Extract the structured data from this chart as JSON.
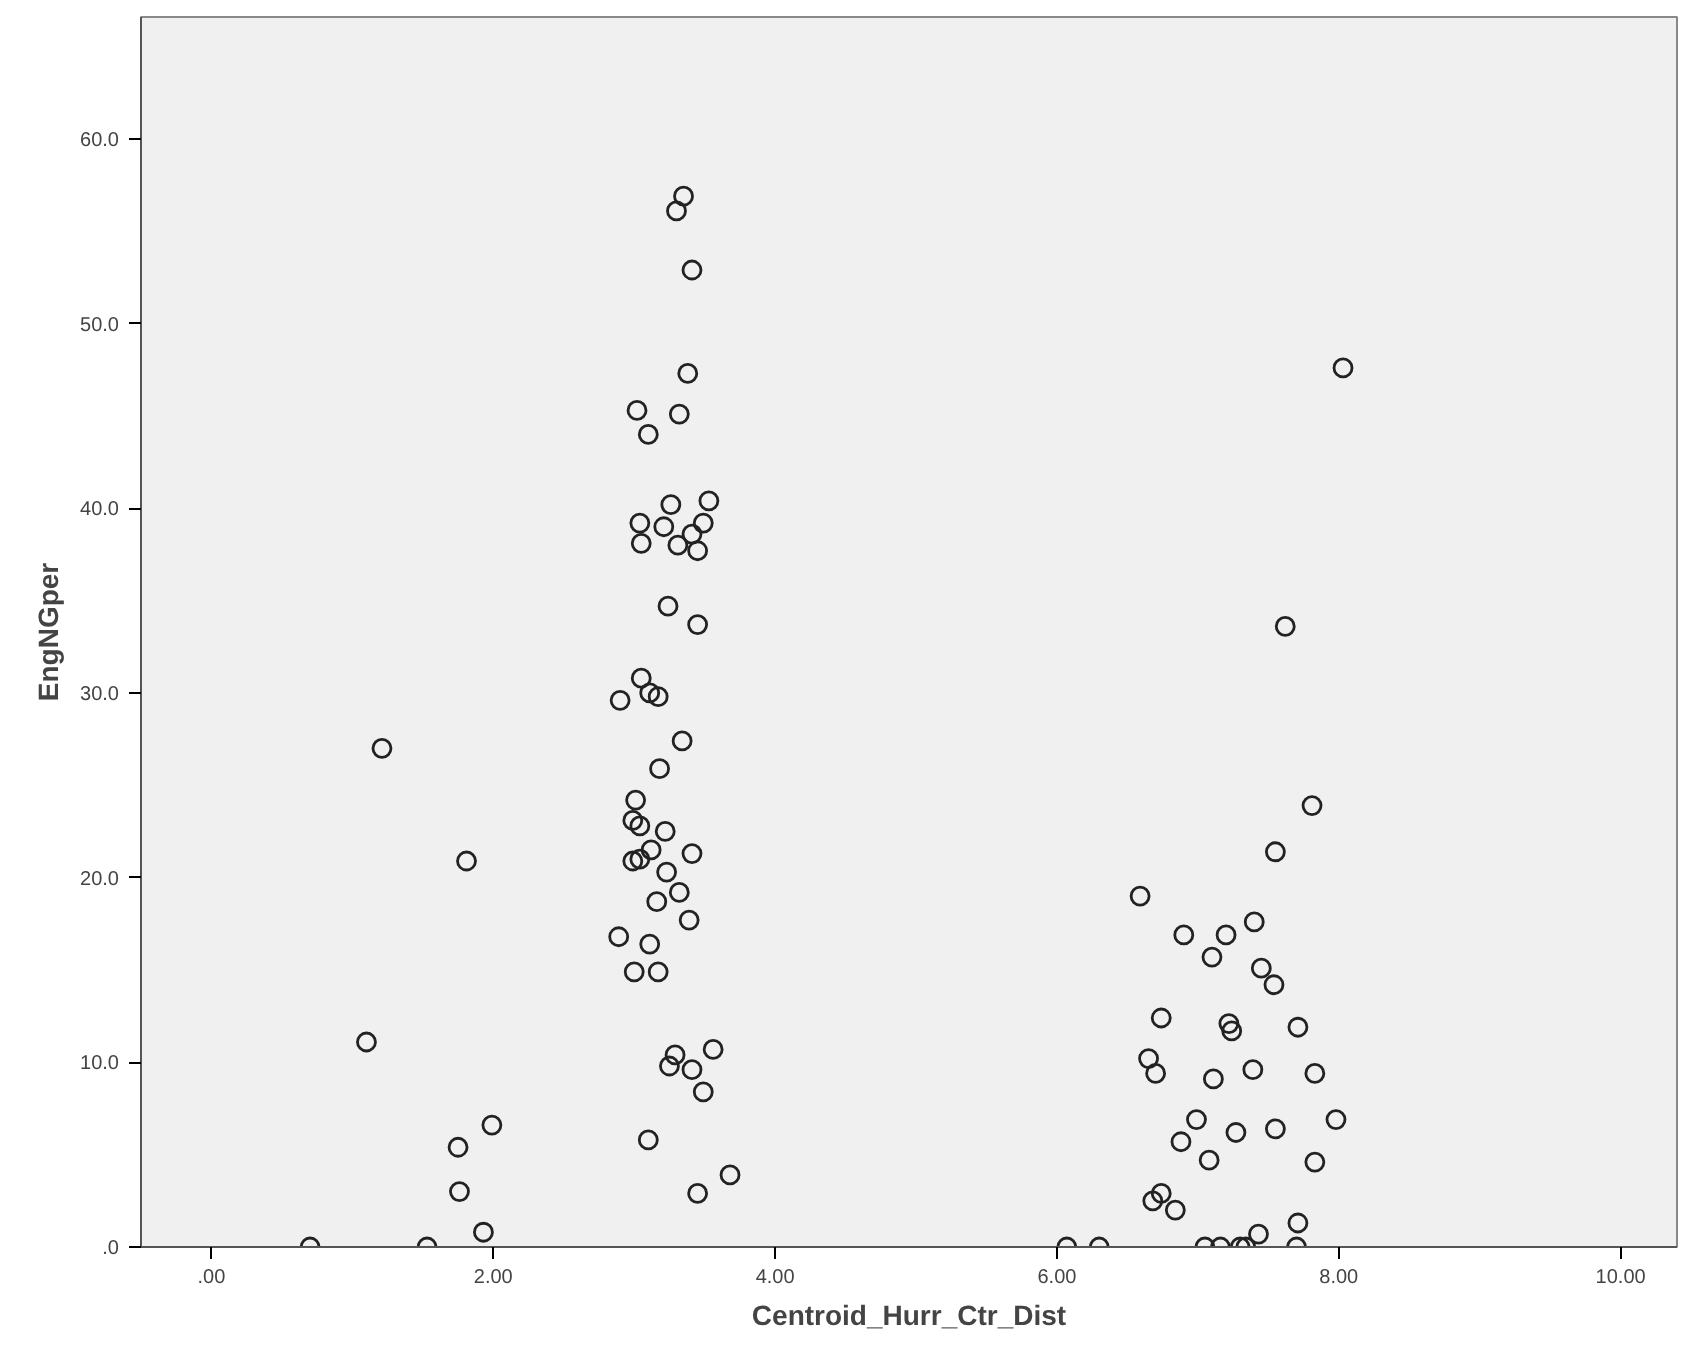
{
  "chart_data": {
    "type": "scatter",
    "xlabel": "Centroid_Hurr_Ctr_Dist",
    "ylabel": "EngNGper",
    "marker": "circle",
    "grid": false,
    "xlim": [
      -0.5,
      10.4
    ],
    "ylim": [
      0,
      66.6
    ],
    "xticks": [
      {
        "value": 0,
        "label": ".00"
      },
      {
        "value": 2,
        "label": "2.00"
      },
      {
        "value": 4,
        "label": "4.00"
      },
      {
        "value": 6,
        "label": "6.00"
      },
      {
        "value": 8,
        "label": "8.00"
      },
      {
        "value": 10,
        "label": "10.00"
      }
    ],
    "yticks": [
      {
        "value": 0,
        "label": ".0"
      },
      {
        "value": 10,
        "label": "10.0"
      },
      {
        "value": 20,
        "label": "20.0"
      },
      {
        "value": 30,
        "label": "30.0"
      },
      {
        "value": 40,
        "label": "40.0"
      },
      {
        "value": 50,
        "label": "50.0"
      },
      {
        "value": 60,
        "label": "60.0"
      }
    ],
    "series": [
      {
        "color": "#222222",
        "x": [
          0.7,
          1.53,
          1.21,
          1.81,
          1.1,
          1.99,
          1.75,
          1.76,
          1.93,
          3.35,
          3.3,
          3.41,
          3.38,
          3.02,
          3.32,
          3.1,
          3.26,
          3.53,
          3.04,
          3.21,
          3.49,
          3.41,
          3.05,
          3.31,
          3.45,
          3.24,
          3.45,
          3.05,
          3.11,
          3.17,
          2.9,
          3.34,
          3.18,
          3.01,
          2.99,
          3.04,
          3.22,
          3.12,
          3.41,
          2.99,
          3.04,
          3.23,
          3.32,
          3.16,
          3.39,
          2.89,
          3.11,
          3.0,
          3.17,
          3.56,
          3.29,
          3.25,
          3.41,
          3.49,
          3.1,
          3.68,
          3.45,
          8.03,
          7.62,
          7.81,
          7.55,
          6.59,
          6.9,
          7.2,
          7.4,
          7.1,
          7.45,
          7.54,
          6.74,
          7.22,
          7.24,
          7.71,
          6.65,
          6.7,
          7.11,
          7.39,
          7.83,
          6.99,
          7.98,
          6.88,
          7.27,
          7.55,
          7.08,
          7.83,
          6.74,
          6.68,
          6.84,
          7.43,
          7.71,
          6.07,
          6.3,
          7.05,
          7.16,
          7.3,
          7.34,
          7.7
        ],
        "values": [
          0,
          0,
          27.0,
          20.9,
          11.1,
          6.6,
          5.4,
          3.0,
          0.8,
          56.9,
          56.1,
          52.9,
          47.3,
          45.3,
          45.1,
          44.0,
          40.2,
          40.4,
          39.2,
          39.0,
          39.2,
          38.6,
          38.1,
          38.0,
          37.7,
          34.7,
          33.7,
          30.8,
          30.0,
          29.8,
          29.6,
          27.4,
          25.9,
          24.2,
          23.1,
          22.8,
          22.5,
          21.5,
          21.3,
          20.9,
          21.0,
          20.3,
          19.2,
          18.7,
          17.7,
          16.8,
          16.4,
          14.9,
          14.9,
          10.7,
          10.4,
          9.8,
          9.6,
          8.4,
          5.8,
          3.9,
          2.9,
          47.6,
          33.6,
          23.9,
          21.4,
          19.0,
          16.9,
          16.9,
          17.6,
          15.7,
          15.1,
          14.2,
          12.4,
          12.1,
          11.7,
          11.9,
          10.2,
          9.4,
          9.1,
          9.6,
          9.4,
          6.9,
          6.9,
          5.7,
          6.2,
          6.4,
          4.7,
          4.6,
          2.9,
          2.5,
          2.0,
          0.7,
          1.3,
          0,
          0,
          0,
          0,
          0,
          0,
          0
        ]
      }
    ]
  }
}
